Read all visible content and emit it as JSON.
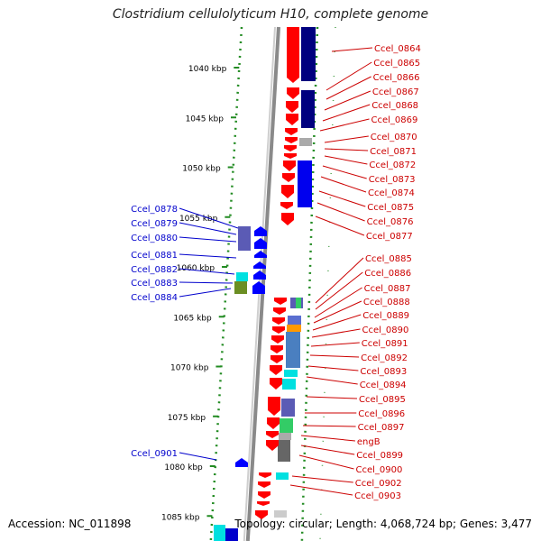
{
  "title": "Clostridium cellulolyticum H10, complete genome",
  "footer": {
    "accession": "Accession: NC_011898",
    "topology": "Topology: circular; Length: 4,068,724 bp; Genes: 3,477"
  },
  "colors": {
    "backbone": "#8a8a8a",
    "forward_gene": "#ff0000",
    "reverse_gene": "#0000ff",
    "forward_label": "#cc0000",
    "reverse_label": "#0000cc",
    "ticks": "#228B22",
    "cog_navy": "#00007f",
    "cog_slate": "#5b5bb5",
    "cog_steel": "#4a7fc0",
    "cog_cyan": "#00e0e0",
    "cog_green": "#33cc66",
    "cog_olive": "#6b8e23",
    "cog_gray": "#aaaaaa"
  },
  "scale": {
    "unit": "kbp",
    "ticks": [
      1040,
      1045,
      1050,
      1055,
      1060,
      1065,
      1070,
      1075,
      1080,
      1085
    ]
  },
  "forward_genes": [
    {
      "label": "Ccel_0864"
    },
    {
      "label": "Ccel_0865"
    },
    {
      "label": "Ccel_0866"
    },
    {
      "label": "Ccel_0867"
    },
    {
      "label": "Ccel_0868"
    },
    {
      "label": "Ccel_0869"
    },
    {
      "label": "Ccel_0870"
    },
    {
      "label": "Ccel_0871"
    },
    {
      "label": "Ccel_0872"
    },
    {
      "label": "Ccel_0873"
    },
    {
      "label": "Ccel_0874"
    },
    {
      "label": "Ccel_0875"
    },
    {
      "label": "Ccel_0876"
    },
    {
      "label": "Ccel_0877"
    },
    {
      "label": "Ccel_0885"
    },
    {
      "label": "Ccel_0886"
    },
    {
      "label": "Ccel_0887"
    },
    {
      "label": "Ccel_0888"
    },
    {
      "label": "Ccel_0889"
    },
    {
      "label": "Ccel_0890"
    },
    {
      "label": "Ccel_0891"
    },
    {
      "label": "Ccel_0892"
    },
    {
      "label": "Ccel_0893"
    },
    {
      "label": "Ccel_0894"
    },
    {
      "label": "Ccel_0895"
    },
    {
      "label": "Ccel_0896"
    },
    {
      "label": "Ccel_0897"
    },
    {
      "label": "engB"
    },
    {
      "label": "Ccel_0899"
    },
    {
      "label": "Ccel_0900"
    },
    {
      "label": "Ccel_0902"
    },
    {
      "label": "Ccel_0903"
    }
  ],
  "reverse_genes": [
    {
      "label": "Ccel_0878"
    },
    {
      "label": "Ccel_0879"
    },
    {
      "label": "Ccel_0880"
    },
    {
      "label": "Ccel_0881"
    },
    {
      "label": "Ccel_0882"
    },
    {
      "label": "Ccel_0883"
    },
    {
      "label": "Ccel_0884"
    },
    {
      "label": "Ccel_0901"
    }
  ]
}
